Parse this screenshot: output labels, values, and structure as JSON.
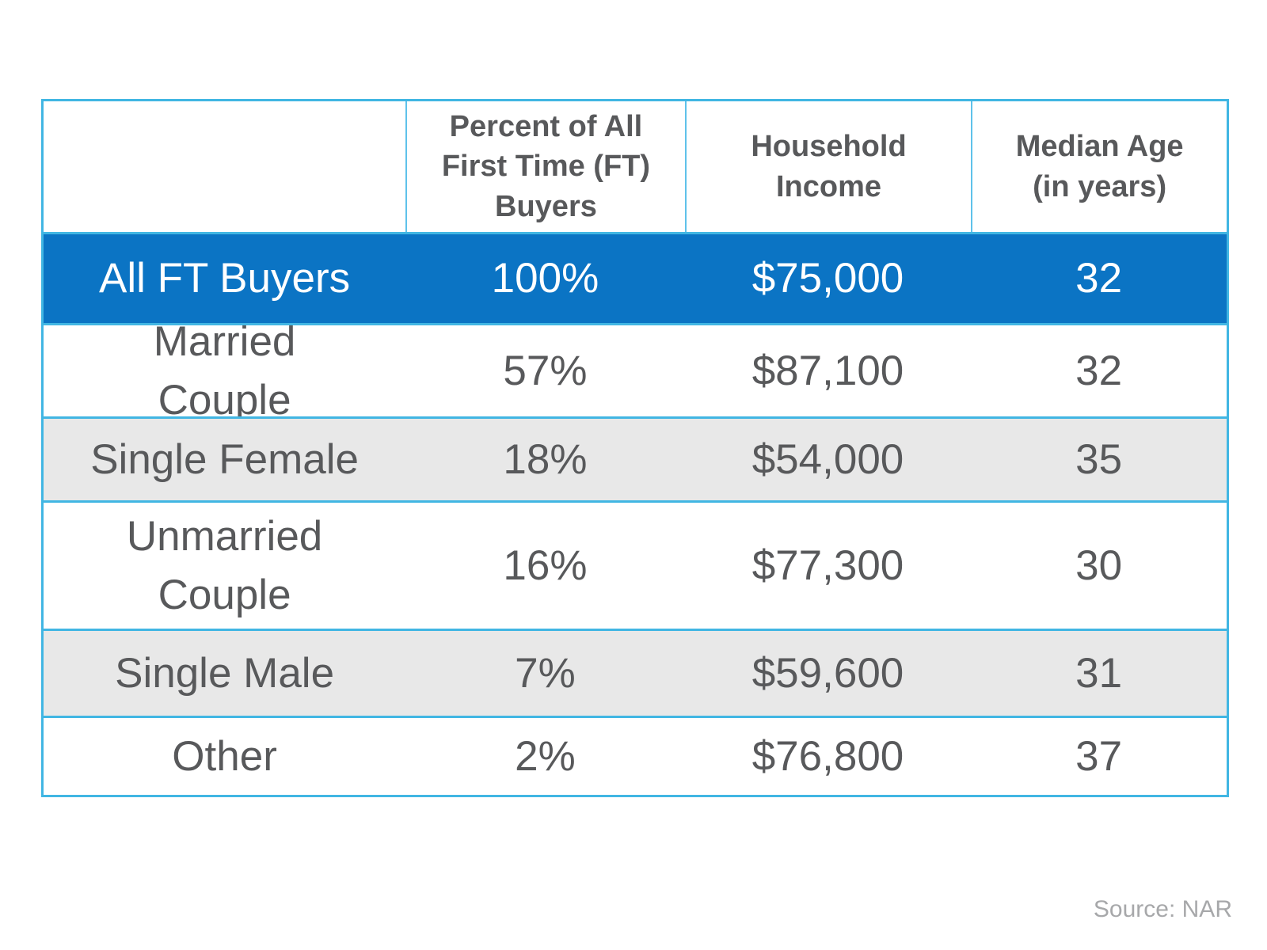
{
  "table": {
    "border_color": "#41B6E3",
    "header_divider_color": "#5FC2EA",
    "highlight_bg": "#0B74C4",
    "highlight_text_color": "#FFFFFF",
    "stripe_bg": "#E8E8E8",
    "text_color": "#58595B",
    "columns": [
      "",
      "Percent of All First Time (FT) Buyers",
      "Household Income",
      "Median Age (in years)"
    ],
    "rows": [
      {
        "label": "All FT Buyers",
        "percent": "100%",
        "income": "$75,000",
        "age": "32",
        "style": "highlight"
      },
      {
        "label": "Married Couple",
        "percent": "57%",
        "income": "$87,100",
        "age": "32",
        "style": "white"
      },
      {
        "label": "Single Female",
        "percent": "18%",
        "income": "$54,000",
        "age": "35",
        "style": "stripe"
      },
      {
        "label": "Unmarried Couple",
        "percent": "16%",
        "income": "$77,300",
        "age": "30",
        "style": "white"
      },
      {
        "label": "Single Male",
        "percent": "7%",
        "income": "$59,600",
        "age": "31",
        "style": "stripe"
      },
      {
        "label": "Other",
        "percent": "2%",
        "income": "$76,800",
        "age": "37",
        "style": "white"
      }
    ]
  },
  "footer": {
    "source": "Source: NAR"
  },
  "chart_data": {
    "type": "table",
    "title": "",
    "columns": [
      "",
      "Percent of All First Time (FT) Buyers",
      "Household Income",
      "Median Age (in years)"
    ],
    "rows": [
      [
        "All FT Buyers",
        "100%",
        "$75,000",
        "32"
      ],
      [
        "Married Couple",
        "57%",
        "$87,100",
        "32"
      ],
      [
        "Single Female",
        "18%",
        "$54,000",
        "35"
      ],
      [
        "Unmarried Couple",
        "16%",
        "$77,300",
        "30"
      ],
      [
        "Single Male",
        "7%",
        "$59,600",
        "31"
      ],
      [
        "Other",
        "2%",
        "$76,800",
        "37"
      ]
    ],
    "notes": {
      "highlighted_row": "All FT Buyers",
      "striped_rows": [
        "Single Female",
        "Single Male"
      ],
      "source": "Source: NAR"
    },
    "layout": {
      "grid": "horizontal row separators only; vertical separators in header row",
      "legend_position": "none"
    }
  }
}
